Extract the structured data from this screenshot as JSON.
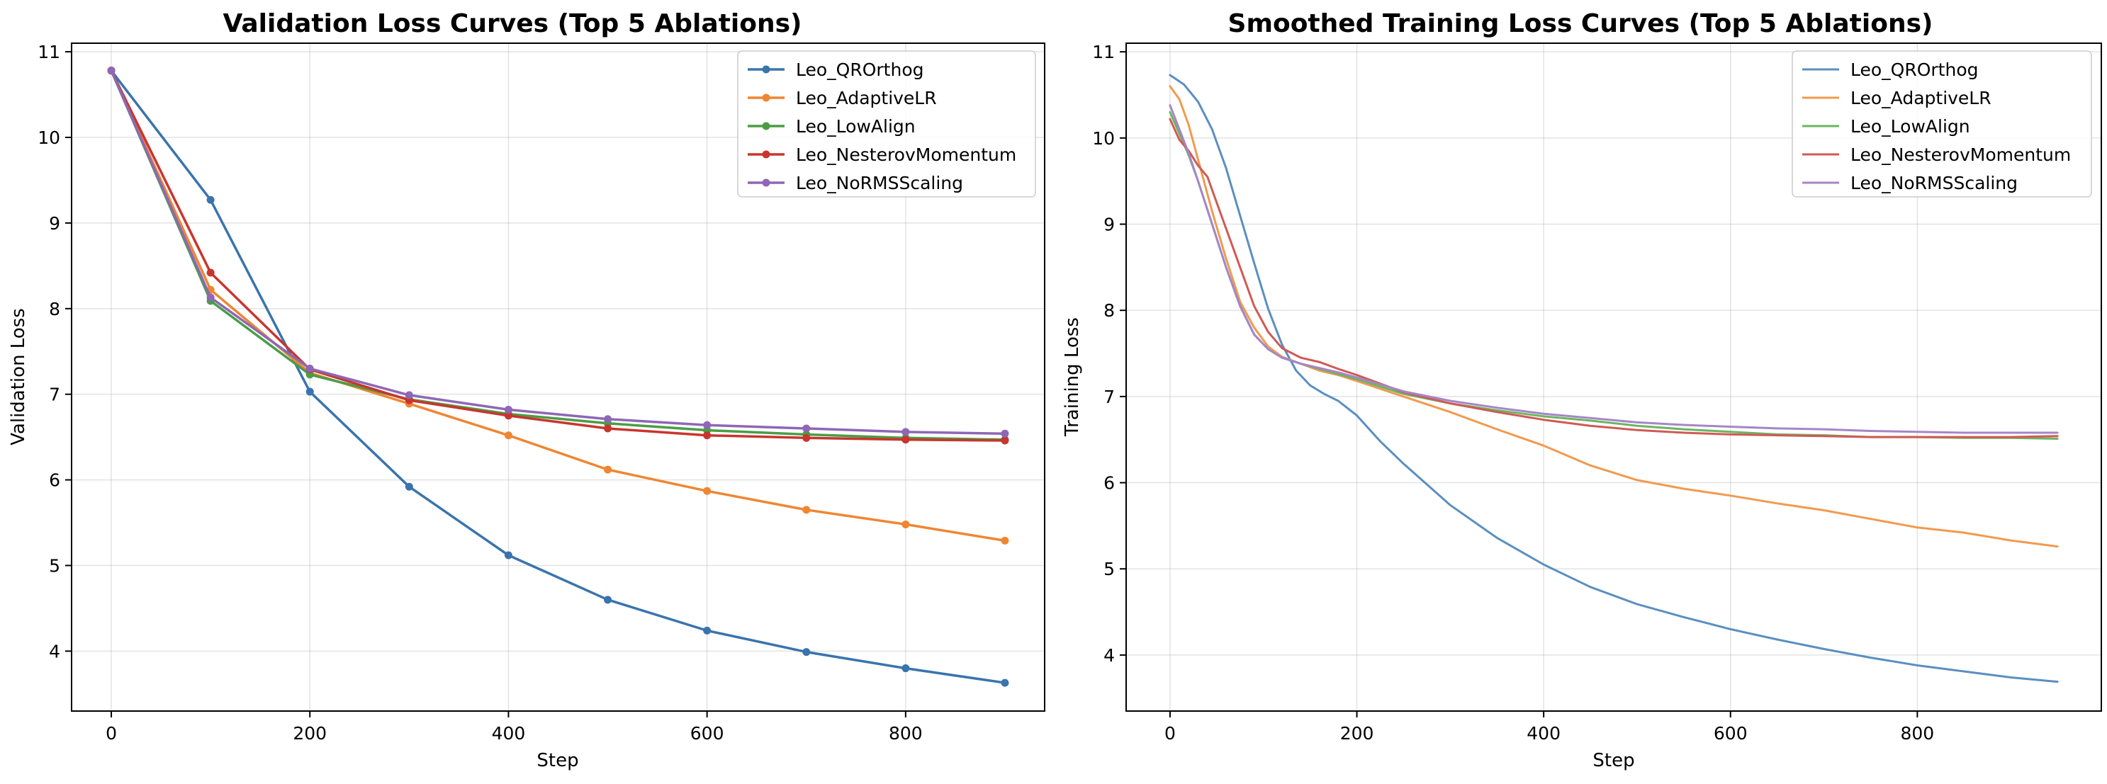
{
  "chart_data": [
    {
      "type": "line",
      "title": "Validation Loss Curves (Top 5 Ablations)",
      "xlabel": "Step",
      "ylabel": "Validation Loss",
      "xlim": [
        -40,
        940
      ],
      "ylim": [
        3.3,
        11.1
      ],
      "xticks": [
        0,
        200,
        400,
        600,
        800
      ],
      "yticks": [
        4,
        5,
        6,
        7,
        8,
        9,
        10,
        11
      ],
      "grid": true,
      "markers": true,
      "legend_position": "top-right",
      "series": [
        {
          "name": "Leo_QROrthog",
          "color": "#3a74ad",
          "x": [
            0,
            100,
            200,
            300,
            400,
            500,
            600,
            700,
            800,
            900
          ],
          "y": [
            10.78,
            9.27,
            7.03,
            5.92,
            5.12,
            4.6,
            4.24,
            3.99,
            3.8,
            3.63
          ]
        },
        {
          "name": "Leo_AdaptiveLR",
          "color": "#ef8632",
          "x": [
            0,
            100,
            200,
            300,
            400,
            500,
            600,
            700,
            800,
            900
          ],
          "y": [
            10.78,
            8.22,
            7.25,
            6.89,
            6.52,
            6.12,
            5.87,
            5.65,
            5.48,
            5.29
          ]
        },
        {
          "name": "Leo_LowAlign",
          "color": "#4a9d45",
          "x": [
            0,
            100,
            200,
            300,
            400,
            500,
            600,
            700,
            800,
            900
          ],
          "y": [
            10.78,
            8.09,
            7.23,
            6.94,
            6.77,
            6.66,
            6.58,
            6.53,
            6.49,
            6.47
          ]
        },
        {
          "name": "Leo_NesterovMomentum",
          "color": "#c9352e",
          "x": [
            0,
            100,
            200,
            300,
            400,
            500,
            600,
            700,
            800,
            900
          ],
          "y": [
            10.78,
            8.42,
            7.29,
            6.93,
            6.75,
            6.6,
            6.52,
            6.49,
            6.47,
            6.46
          ]
        },
        {
          "name": "Leo_NoRMSScaling",
          "color": "#8e67b6",
          "x": [
            0,
            100,
            200,
            300,
            400,
            500,
            600,
            700,
            800,
            900
          ],
          "y": [
            10.78,
            8.13,
            7.3,
            6.99,
            6.82,
            6.71,
            6.64,
            6.6,
            6.56,
            6.54
          ]
        }
      ]
    },
    {
      "type": "line",
      "title": "Smoothed Training Loss Curves (Top 5 Ablations)",
      "xlabel": "Step",
      "ylabel": "Training Loss",
      "xlim": [
        -47,
        997
      ],
      "ylim": [
        3.35,
        11.1
      ],
      "xticks": [
        0,
        200,
        400,
        600,
        800
      ],
      "yticks": [
        4,
        5,
        6,
        7,
        8,
        9,
        10,
        11
      ],
      "grid": true,
      "markers": false,
      "legend_position": "top-right",
      "series": [
        {
          "name": "Leo_QROrthog",
          "color": "#5b8fc0",
          "x": [
            0,
            15,
            30,
            45,
            60,
            75,
            90,
            105,
            120,
            135,
            150,
            165,
            180,
            200,
            225,
            250,
            275,
            300,
            350,
            400,
            450,
            500,
            550,
            600,
            650,
            700,
            750,
            800,
            850,
            900,
            950
          ],
          "y": [
            10.73,
            10.62,
            10.42,
            10.1,
            9.65,
            9.1,
            8.55,
            8.02,
            7.6,
            7.3,
            7.13,
            7.03,
            6.95,
            6.78,
            6.48,
            6.22,
            5.98,
            5.74,
            5.36,
            5.05,
            4.79,
            4.59,
            4.44,
            4.3,
            4.18,
            4.07,
            3.97,
            3.88,
            3.81,
            3.74,
            3.69
          ]
        },
        {
          "name": "Leo_AdaptiveLR",
          "color": "#f19a4f",
          "x": [
            0,
            10,
            20,
            30,
            45,
            60,
            75,
            90,
            105,
            120,
            140,
            160,
            180,
            200,
            250,
            300,
            350,
            400,
            450,
            500,
            550,
            600,
            650,
            700,
            750,
            800,
            850,
            900,
            950
          ],
          "y": [
            10.6,
            10.45,
            10.15,
            9.75,
            9.15,
            8.6,
            8.1,
            7.8,
            7.58,
            7.46,
            7.38,
            7.3,
            7.25,
            7.18,
            7.0,
            6.82,
            6.62,
            6.43,
            6.2,
            6.03,
            5.93,
            5.85,
            5.76,
            5.68,
            5.58,
            5.48,
            5.42,
            5.33,
            5.26
          ]
        },
        {
          "name": "Leo_LowAlign",
          "color": "#6bb562",
          "x": [
            0,
            10,
            20,
            30,
            45,
            60,
            75,
            90,
            105,
            120,
            140,
            160,
            180,
            200,
            250,
            300,
            350,
            400,
            450,
            500,
            550,
            600,
            650,
            700,
            750,
            800,
            850,
            900,
            950
          ],
          "y": [
            10.3,
            10.05,
            9.8,
            9.5,
            9.0,
            8.5,
            8.05,
            7.72,
            7.55,
            7.45,
            7.38,
            7.32,
            7.26,
            7.2,
            7.03,
            6.92,
            6.84,
            6.77,
            6.72,
            6.66,
            6.62,
            6.59,
            6.56,
            6.55,
            6.53,
            6.53,
            6.52,
            6.52,
            6.51
          ]
        },
        {
          "name": "Leo_NesterovMomentum",
          "color": "#d05a54",
          "x": [
            0,
            10,
            20,
            30,
            40,
            50,
            60,
            70,
            80,
            90,
            105,
            120,
            140,
            160,
            180,
            200,
            250,
            300,
            350,
            400,
            450,
            500,
            550,
            600,
            650,
            700,
            750,
            800,
            850,
            900,
            950
          ],
          "y": [
            10.22,
            9.98,
            9.85,
            9.68,
            9.55,
            9.25,
            8.95,
            8.65,
            8.35,
            8.05,
            7.75,
            7.56,
            7.45,
            7.4,
            7.32,
            7.25,
            7.05,
            6.92,
            6.82,
            6.73,
            6.66,
            6.61,
            6.58,
            6.56,
            6.55,
            6.54,
            6.53,
            6.53,
            6.53,
            6.53,
            6.54
          ]
        },
        {
          "name": "Leo_NoRMSScaling",
          "color": "#a586c7",
          "x": [
            0,
            10,
            20,
            30,
            45,
            60,
            75,
            90,
            105,
            120,
            140,
            160,
            180,
            200,
            250,
            300,
            350,
            400,
            450,
            500,
            550,
            600,
            650,
            700,
            750,
            800,
            850,
            900,
            950
          ],
          "y": [
            10.38,
            10.1,
            9.82,
            9.5,
            9.0,
            8.5,
            8.05,
            7.72,
            7.55,
            7.45,
            7.38,
            7.33,
            7.28,
            7.22,
            7.06,
            6.95,
            6.87,
            6.8,
            6.75,
            6.7,
            6.67,
            6.65,
            6.63,
            6.62,
            6.6,
            6.59,
            6.58,
            6.58,
            6.58
          ]
        }
      ]
    }
  ]
}
